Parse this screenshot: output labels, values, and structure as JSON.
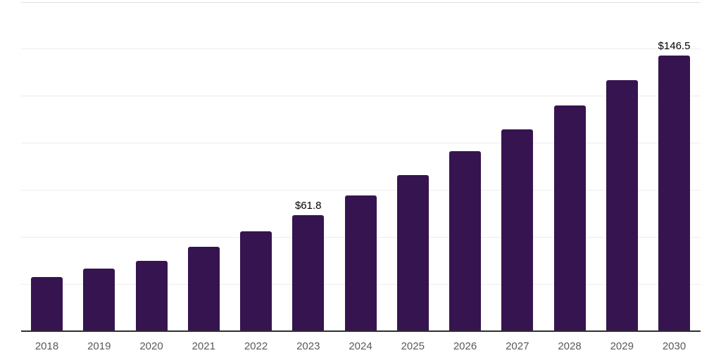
{
  "chart_data": {
    "type": "bar",
    "title": "",
    "xlabel": "",
    "ylabel": "",
    "categories": [
      "2018",
      "2019",
      "2020",
      "2021",
      "2022",
      "2023",
      "2024",
      "2025",
      "2026",
      "2027",
      "2028",
      "2029",
      "2030"
    ],
    "values": [
      28.9,
      33.2,
      37.3,
      44.7,
      53.0,
      61.8,
      72.2,
      83.0,
      95.5,
      107.3,
      119.9,
      133.4,
      146.5
    ],
    "data_labels": [
      {
        "category": "2023",
        "text": "$61.8"
      },
      {
        "category": "2030",
        "text": "$146.5"
      }
    ],
    "value_prefix": "$",
    "ylim": [
      0,
      175
    ],
    "gridline_step": 25,
    "grid": true,
    "y_tick_labels_visible": false,
    "legend": false,
    "colors": {
      "bar": "#361450",
      "axis_line": "#2e2e2e",
      "gridline": "#ededed",
      "top_gridline": "#e2e2e2",
      "x_tick_label": "#595959",
      "data_label": "#000000",
      "background": "#ffffff"
    }
  }
}
